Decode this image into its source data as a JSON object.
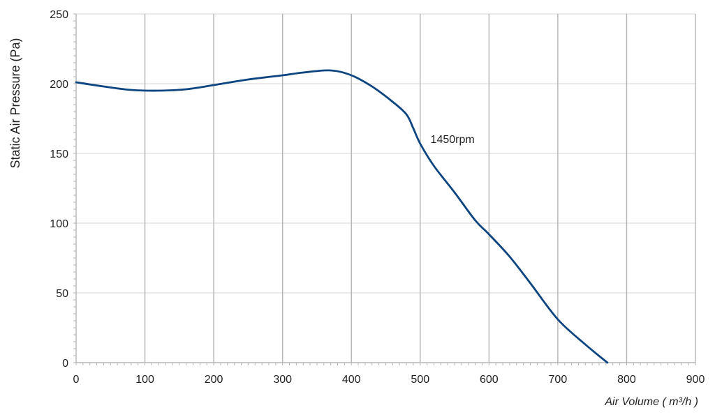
{
  "chart_data": {
    "type": "line",
    "title": "",
    "xlabel": "Air Volume ( m³/h )",
    "ylabel": "Static Air Pressure  (Pa)",
    "xlim": [
      0,
      900
    ],
    "ylim": [
      0,
      250
    ],
    "x_ticks": [
      0,
      100,
      200,
      300,
      400,
      500,
      600,
      700,
      800,
      900
    ],
    "y_ticks": [
      0,
      50,
      100,
      150,
      200,
      250
    ],
    "grid": true,
    "legend": "none",
    "annotations": [
      {
        "text": "1450rpm",
        "x": 515,
        "y": 160
      }
    ],
    "series": [
      {
        "color": "#0d4580",
        "x": [
          0,
          40,
          80,
          120,
          160,
          200,
          250,
          300,
          330,
          370,
          400,
          430,
          460,
          480,
          490,
          500,
          520,
          550,
          580,
          600,
          630,
          660,
          700,
          740,
          772
        ],
        "y": [
          201,
          198,
          195.5,
          195,
          196,
          199,
          203,
          206,
          208,
          209.5,
          206,
          198,
          187,
          178,
          168,
          157,
          141,
          122,
          102,
          92,
          76,
          57,
          31,
          13,
          0
        ]
      }
    ]
  }
}
